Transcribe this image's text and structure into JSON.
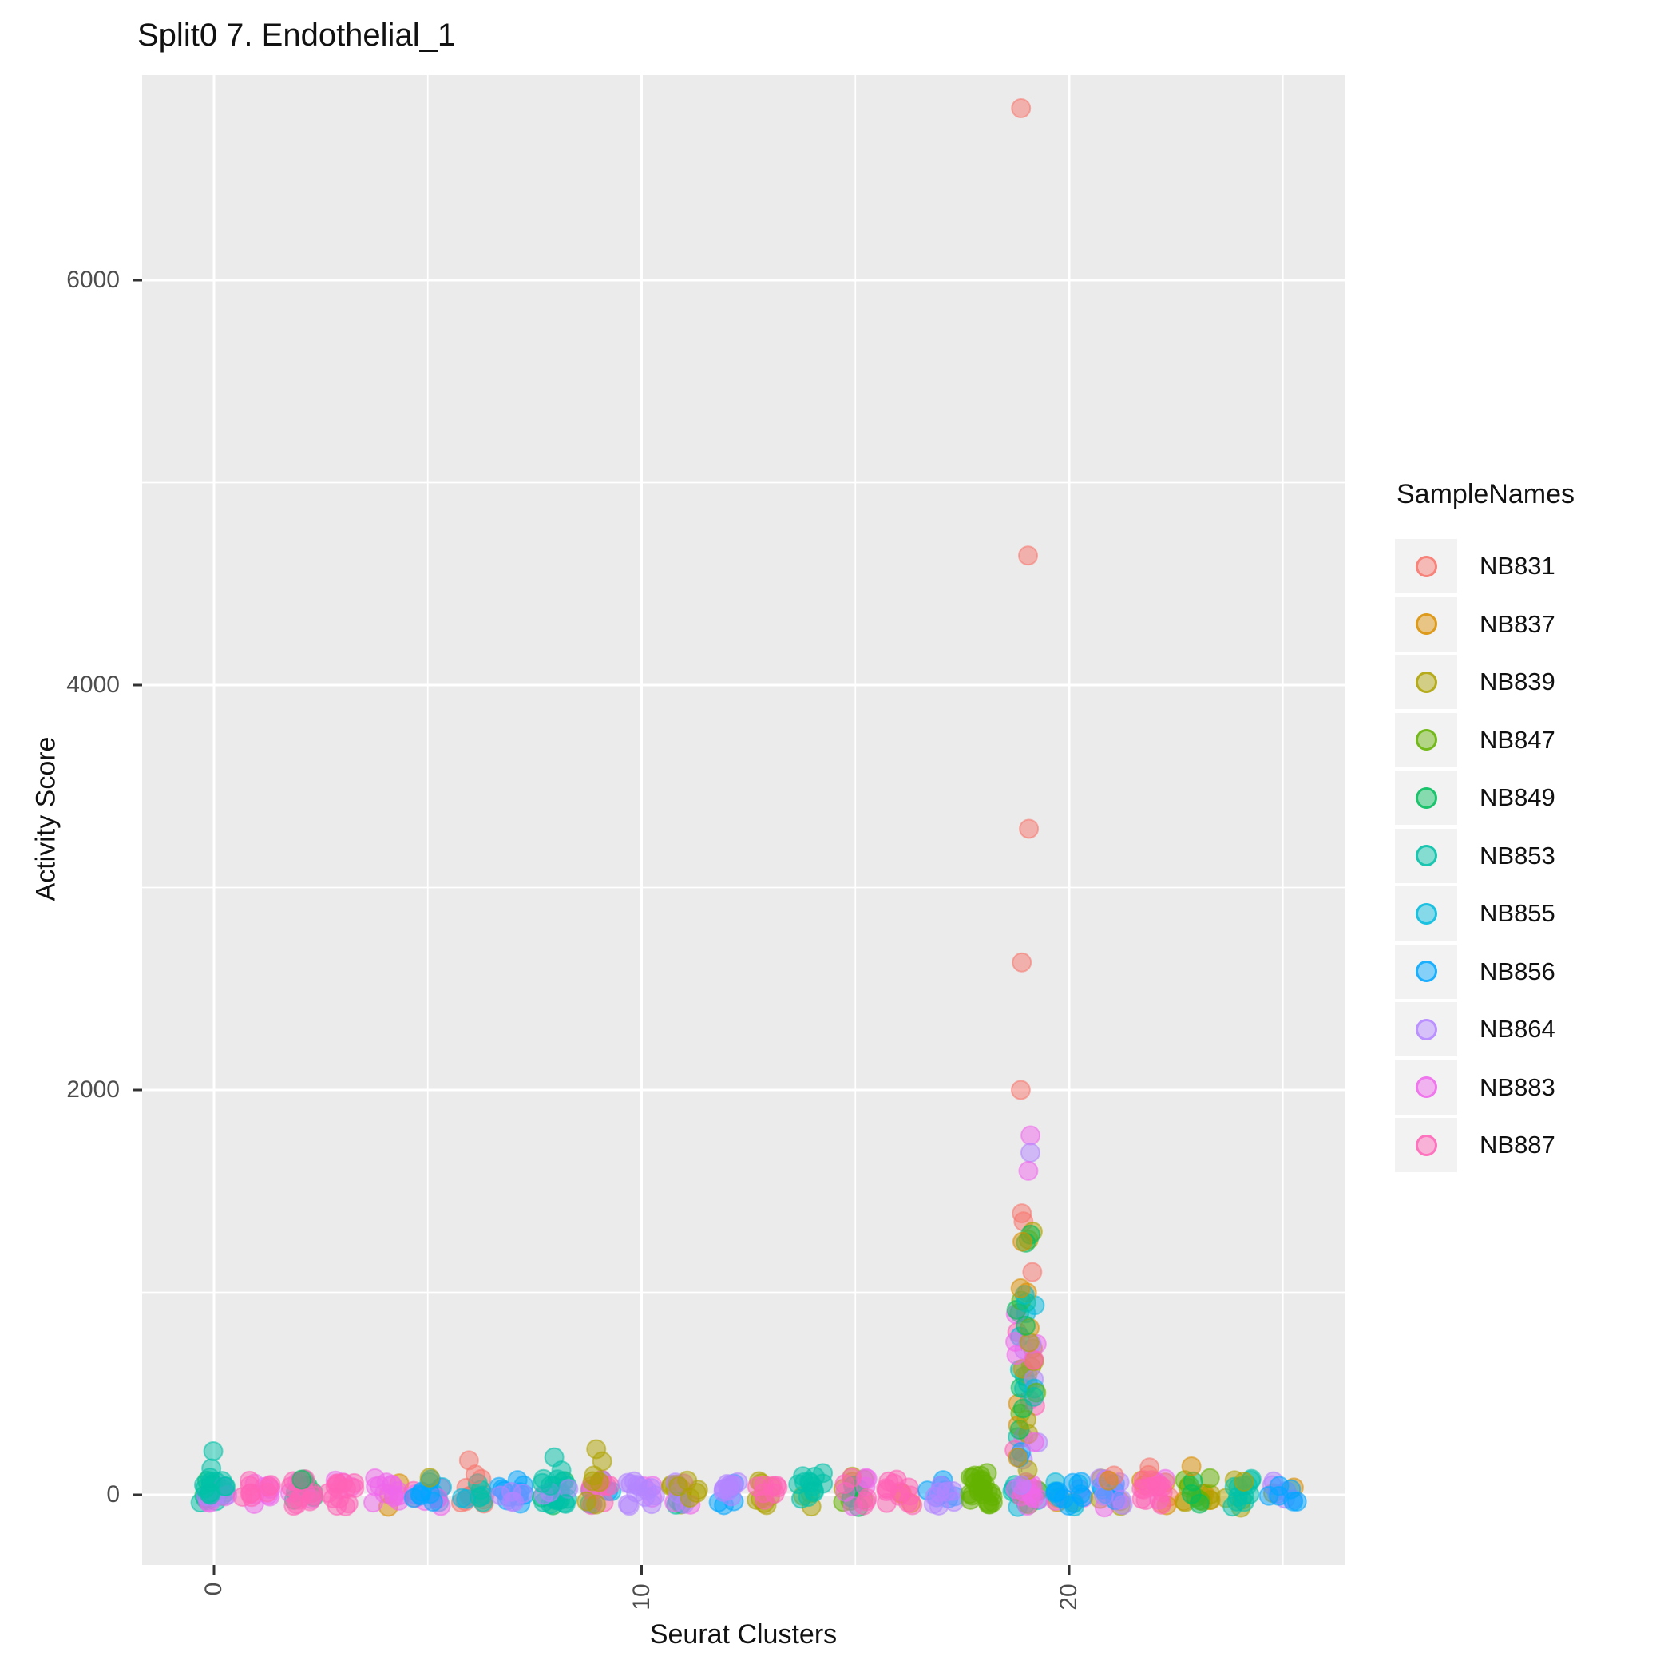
{
  "title": "Split0 7. Endothelial_1",
  "axes": {
    "x_title": "Seurat Clusters",
    "y_title": "Activity Score",
    "x_tick_labels": [
      "0",
      "10",
      "20"
    ],
    "x_tick_positions": [
      0,
      10,
      20
    ],
    "y_tick_labels": [
      "0",
      "2000",
      "4000",
      "6000"
    ],
    "y_tick_values": [
      0,
      2000,
      4000,
      6000
    ]
  },
  "legend": {
    "title": "SampleNames",
    "entries": [
      {
        "label": "NB831",
        "color": "#F8766D"
      },
      {
        "label": "NB837",
        "color": "#DB8E00"
      },
      {
        "label": "NB839",
        "color": "#AEA200"
      },
      {
        "label": "NB847",
        "color": "#64B200"
      },
      {
        "label": "NB849",
        "color": "#00BD5C"
      },
      {
        "label": "NB853",
        "color": "#00C1A7"
      },
      {
        "label": "NB855",
        "color": "#00BADE"
      },
      {
        "label": "NB856",
        "color": "#00A6FF"
      },
      {
        "label": "NB864",
        "color": "#B385FF"
      },
      {
        "label": "NB883",
        "color": "#EF67EB"
      },
      {
        "label": "NB887",
        "color": "#FF63B6"
      }
    ]
  },
  "chart_data": {
    "type": "scatter",
    "subtype": "jittered-strip-plot",
    "title": "Split0 7. Endothelial_1",
    "xlabel": "Seurat Clusters",
    "ylabel": "Activity Score",
    "legend_title": "SampleNames",
    "legend_position": "right",
    "grid": true,
    "panel_background": "#EBEBEB",
    "gridline_color": "#FFFFFF",
    "x_categories": [
      0,
      1,
      2,
      3,
      4,
      5,
      6,
      7,
      8,
      9,
      10,
      11,
      12,
      13,
      14,
      15,
      16,
      17,
      18,
      19,
      20,
      21,
      22,
      23,
      24,
      25
    ],
    "x_ticks_shown": [
      0,
      10,
      20
    ],
    "y_ticks": [
      0,
      2000,
      4000,
      6000
    ],
    "ylim": [
      -380,
      7000
    ],
    "point_alpha": 0.5,
    "samples": [
      {
        "name": "NB831",
        "color": "#F8766D"
      },
      {
        "name": "NB837",
        "color": "#DB8E00"
      },
      {
        "name": "NB839",
        "color": "#AEA200"
      },
      {
        "name": "NB847",
        "color": "#64B200"
      },
      {
        "name": "NB849",
        "color": "#00BD5C"
      },
      {
        "name": "NB853",
        "color": "#00C1A7"
      },
      {
        "name": "NB855",
        "color": "#00BADE"
      },
      {
        "name": "NB856",
        "color": "#00A6FF"
      },
      {
        "name": "NB864",
        "color": "#B385FF"
      },
      {
        "name": "NB883",
        "color": "#EF67EB"
      },
      {
        "name": "NB887",
        "color": "#FF63B6"
      }
    ],
    "clusters": [
      {
        "id": 0,
        "layers": [
          [
            "NB849",
            4
          ],
          [
            "NB853",
            9
          ],
          [
            "NB883",
            3
          ],
          [
            "NB864",
            4
          ],
          [
            "NB853",
            8
          ]
        ],
        "spread": 80,
        "outliers": [
          [
            "NB853",
            215
          ],
          [
            "NB853",
            130
          ],
          [
            "NB853",
            85
          ]
        ]
      },
      {
        "id": 1,
        "layers": [
          [
            "NB883",
            8
          ],
          [
            "NB887",
            9
          ]
        ],
        "spread": 70,
        "outliers": []
      },
      {
        "id": 2,
        "layers": [
          [
            "NB849",
            7
          ],
          [
            "NB883",
            4
          ],
          [
            "NB887",
            11
          ]
        ],
        "spread": 75,
        "outliers": [
          [
            "NB849",
            75
          ]
        ]
      },
      {
        "id": 3,
        "layers": [
          [
            "NB883",
            4
          ],
          [
            "NB887",
            13
          ]
        ],
        "spread": 75,
        "outliers": []
      },
      {
        "id": 4,
        "layers": [
          [
            "NB837",
            3
          ],
          [
            "NB883",
            13
          ]
        ],
        "spread": 80,
        "outliers": []
      },
      {
        "id": 5,
        "layers": [
          [
            "NB887",
            3
          ],
          [
            "NB855",
            5
          ],
          [
            "NB883",
            4
          ],
          [
            "NB856",
            7
          ]
        ],
        "spread": 75,
        "outliers": [
          [
            "NB839",
            85
          ]
        ]
      },
      {
        "id": 6,
        "layers": [
          [
            "NB831",
            11
          ],
          [
            "NB855",
            3
          ],
          [
            "NB853",
            4
          ]
        ],
        "spread": 80,
        "outliers": [
          [
            "NB831",
            170
          ],
          [
            "NB831",
            100
          ]
        ]
      },
      {
        "id": 7,
        "layers": [
          [
            "NB856",
            11
          ],
          [
            "NB864",
            5
          ]
        ],
        "spread": 70,
        "outliers": []
      },
      {
        "id": 8,
        "layers": [
          [
            "NB849",
            5
          ],
          [
            "NB853",
            12
          ],
          [
            "NB864",
            3
          ],
          [
            "NB853",
            4
          ]
        ],
        "spread": 95,
        "outliers": [
          [
            "NB853",
            185
          ],
          [
            "NB853",
            120
          ]
        ]
      },
      {
        "id": 9,
        "layers": [
          [
            "NB855",
            3
          ],
          [
            "NB856",
            3
          ],
          [
            "NB887",
            9
          ],
          [
            "NB839",
            4
          ]
        ],
        "spread": 80,
        "outliers": [
          [
            "NB839",
            225
          ],
          [
            "NB839",
            165
          ],
          [
            "NB839",
            95
          ]
        ]
      },
      {
        "id": 10,
        "layers": [
          [
            "NB883",
            3
          ],
          [
            "NB864",
            13
          ]
        ],
        "spread": 75,
        "outliers": []
      },
      {
        "id": 11,
        "layers": [
          [
            "NB839",
            9
          ],
          [
            "NB853",
            3
          ],
          [
            "NB883",
            3
          ],
          [
            "NB864",
            3
          ],
          [
            "NB839",
            3
          ]
        ],
        "spread": 80,
        "outliers": [
          [
            "NB839",
            70
          ]
        ]
      },
      {
        "id": 12,
        "layers": [
          [
            "NB856",
            5
          ],
          [
            "NB864",
            11
          ]
        ],
        "spread": 75,
        "outliers": []
      },
      {
        "id": 13,
        "layers": [
          [
            "NB839",
            8
          ],
          [
            "NB887",
            8
          ]
        ],
        "spread": 70,
        "outliers": []
      },
      {
        "id": 14,
        "layers": [
          [
            "NB839",
            3
          ],
          [
            "NB853",
            13
          ]
        ],
        "spread": 100,
        "outliers": []
      },
      {
        "id": 15,
        "layers": [
          [
            "NB847",
            5
          ],
          [
            "NB839",
            3
          ],
          [
            "NB849",
            4
          ],
          [
            "NB883",
            5
          ],
          [
            "NB887",
            5
          ]
        ],
        "spread": 85,
        "outliers": []
      },
      {
        "id": 16,
        "layers": [
          [
            "NB837",
            3
          ],
          [
            "NB887",
            13
          ]
        ],
        "spread": 75,
        "outliers": []
      },
      {
        "id": 17,
        "layers": [
          [
            "NB856",
            8
          ],
          [
            "NB864",
            8
          ]
        ],
        "spread": 70,
        "outliers": []
      },
      {
        "id": 18,
        "layers": [
          [
            "NB847",
            24
          ]
        ],
        "spread": 110,
        "outliers": []
      },
      {
        "id": 19,
        "layers": [
          [
            "NB855",
            5
          ],
          [
            "NB853",
            4
          ],
          [
            "NB847",
            4
          ],
          [
            "NB887",
            4
          ],
          [
            "NB883",
            7
          ]
        ],
        "spread": 70,
        "outliers": [
          [
            "NB831",
            6850
          ],
          [
            "NB831",
            4640
          ],
          [
            "NB831",
            3290
          ],
          [
            "NB831",
            2630
          ],
          [
            "NB831",
            2000
          ],
          [
            "NB883",
            1775
          ],
          [
            "NB864",
            1690
          ],
          [
            "NB883",
            1600
          ],
          [
            "NB831",
            1390
          ],
          [
            "NB831",
            1350
          ],
          [
            "NB839",
            1300
          ],
          [
            "NB839",
            1260
          ],
          [
            "NB849",
            1285
          ],
          [
            "NB849",
            1245
          ],
          [
            "NB837",
            1250
          ],
          [
            "NB831",
            1100
          ],
          [
            "NB837",
            1020
          ]
        ]
      },
      {
        "id": 20,
        "layers": [
          [
            "NB837",
            3
          ],
          [
            "NB883",
            4
          ],
          [
            "NB855",
            7
          ],
          [
            "NB856",
            8
          ]
        ],
        "spread": 80,
        "outliers": []
      },
      {
        "id": 21,
        "layers": [
          [
            "NB839",
            4
          ],
          [
            "NB883",
            5
          ],
          [
            "NB856",
            6
          ],
          [
            "NB864",
            6
          ]
        ],
        "spread": 85,
        "outliers": [
          [
            "NB831",
            95
          ],
          [
            "NB837",
            70
          ]
        ]
      },
      {
        "id": 22,
        "layers": [
          [
            "NB831",
            4
          ],
          [
            "NB837",
            4
          ],
          [
            "NB883",
            4
          ],
          [
            "NB887",
            12
          ]
        ],
        "spread": 100,
        "outliers": [
          [
            "NB831",
            135
          ]
        ]
      },
      {
        "id": 23,
        "layers": [
          [
            "NB837",
            4
          ],
          [
            "NB839",
            6
          ],
          [
            "NB847",
            5
          ],
          [
            "NB849",
            3
          ]
        ],
        "spread": 85,
        "outliers": [
          [
            "NB837",
            140
          ]
        ]
      },
      {
        "id": 24,
        "layers": [
          [
            "NB839",
            4
          ],
          [
            "NB853",
            12
          ]
        ],
        "spread": 80,
        "outliers": [
          [
            "NB839",
            65
          ]
        ]
      },
      {
        "id": 25,
        "layers": [
          [
            "NB837",
            2
          ],
          [
            "NB864",
            6
          ],
          [
            "NB856",
            6
          ]
        ],
        "spread": 65,
        "outliers": []
      }
    ],
    "column_cluster": {
      "id": 19,
      "n": 56,
      "vmin": 0,
      "vmax": 1000,
      "sample_cycle": [
        "NB883",
        "NB855",
        "NB839",
        "NB837",
        "NB864",
        "NB849",
        "NB853",
        "NB887",
        "NB847",
        "NB883",
        "NB856",
        "NB839",
        "NB853",
        "NB837",
        "NB864",
        "NB849",
        "NB883",
        "NB855",
        "NB887",
        "NB839"
      ]
    }
  }
}
